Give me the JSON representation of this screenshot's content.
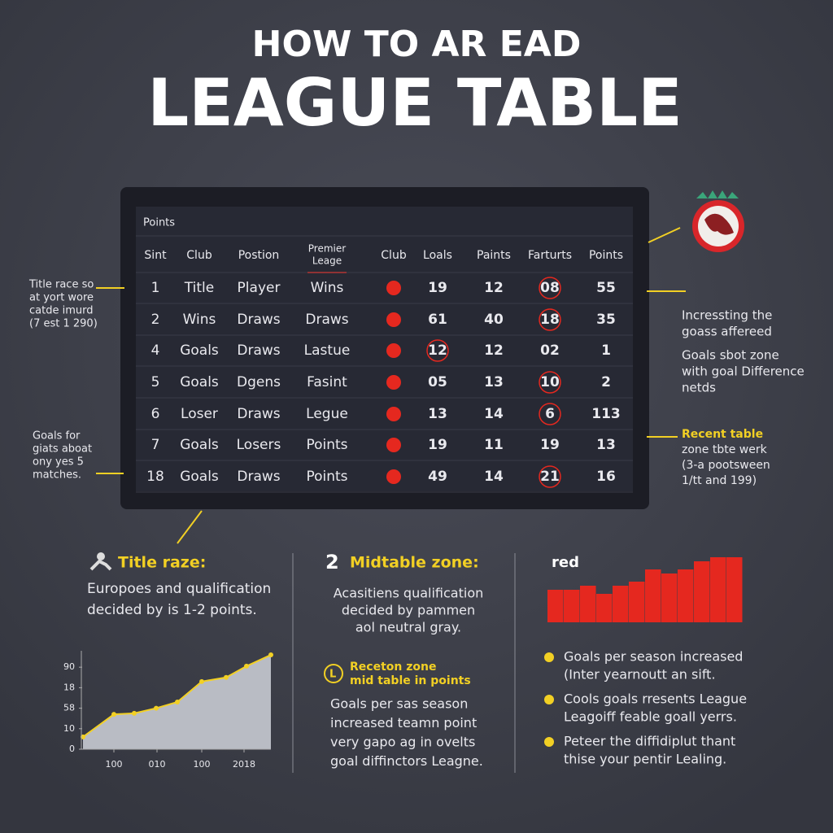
{
  "header": {
    "line1": "HOW TO AR EAD",
    "line2": "LEAGUE TABLE"
  },
  "table": {
    "caption": "Points",
    "columns": [
      "Sint",
      "Club",
      "Postion",
      [
        "Premier",
        "Leage"
      ],
      "Club",
      "Loals",
      "Paints",
      "Farturts",
      "Points"
    ],
    "rows": [
      [
        "1",
        "Title",
        "Player",
        "Wins",
        "19",
        "12",
        {
          "text": "08",
          "circled": true
        },
        "55"
      ],
      [
        "2",
        "Wins",
        "Draws",
        "Draws",
        "61",
        "40",
        {
          "text": "18",
          "circled": true
        },
        "35"
      ],
      [
        "4",
        "Goals",
        "Draws",
        "Lastue",
        {
          "text": "12",
          "circled": true
        },
        "12",
        "02",
        "1"
      ],
      [
        "5",
        "Goals",
        "Dgens",
        "Fasint",
        "05",
        "13",
        {
          "text": "10",
          "circled": true
        },
        "2"
      ],
      [
        "6",
        "Loser",
        "Draws",
        "Legue",
        "13",
        "14",
        {
          "text": "6",
          "circled": true
        },
        "113"
      ],
      [
        "7",
        "Goals",
        "Losers",
        "Points",
        "19",
        "11",
        "19",
        "13"
      ],
      [
        "18",
        "Goals",
        "Draws",
        "Points",
        "49",
        "14",
        {
          "text": "21",
          "circled": true
        },
        "16"
      ]
    ]
  },
  "annotations": {
    "left": [
      [
        "Title race so",
        "at yort wore",
        "catde imurd",
        "(7 est 1 290)"
      ],
      [
        "Goals for",
        "giats aboat",
        "ony yes 5",
        "matches."
      ]
    ],
    "right": [
      [
        "Incressting the",
        "goass affereed"
      ],
      [
        "Goals sbot zone",
        "with goal Difference",
        "netds"
      ]
    ],
    "right_highlight": {
      "title": "Recent table",
      "lines": [
        "zone tbte werk",
        "(3-a pootsween",
        "1/tt and 199)"
      ]
    }
  },
  "sections": {
    "title_race": {
      "title": "Title raze:",
      "lines": [
        "Europoes and qualification",
        "decided by is 1-2 points."
      ]
    },
    "midtable": {
      "title": "Midtable zone:",
      "lines": [
        "Acasitiens qualification",
        "decided by pammen",
        "aol neutral gray."
      ],
      "callout": [
        "Receton zone",
        "mid table in points"
      ],
      "body": [
        "Goals per sas season",
        "increased teamn point",
        "very gapo ag in ovelts",
        "goal diffinctors Leagne."
      ]
    },
    "red_zone": {
      "bullets": [
        [
          "Goals per season increased",
          "(Inter yearnoutt an sift."
        ],
        [
          "Cools goals rresents League",
          "Leagoiff feable goall yerrs."
        ],
        [
          "Peteer the diffidiplut thant",
          "thise your pentir Lealing."
        ]
      ]
    }
  },
  "chart_data": [
    {
      "type": "area",
      "color": "#f2d024",
      "fill": "#b9bcc4",
      "x": [
        0,
        3.8,
        6.3,
        9,
        11.6,
        14.6,
        17.6,
        20.1,
        23.1
      ],
      "values": [
        0.6,
        1.7,
        1.75,
        2,
        2.3,
        3.3,
        3.5,
        4.05,
        4.6
      ],
      "xlim": [
        0,
        23.1
      ],
      "ylim": [
        0,
        4.8
      ],
      "xticks": [
        {
          "value": 3.8,
          "label": "100"
        },
        {
          "value": 9.1,
          "label": "010"
        },
        {
          "value": 14.6,
          "label": "100"
        },
        {
          "value": 19.8,
          "label": "2018"
        }
      ],
      "yticks": [
        {
          "value": 0,
          "label": "0"
        },
        {
          "value": 1,
          "label": "10"
        },
        {
          "value": 2,
          "label": "58"
        },
        {
          "value": 3,
          "label": "18"
        },
        {
          "value": 4,
          "label": "90"
        }
      ]
    },
    {
      "type": "bar",
      "title": "red",
      "color": "#e5281f",
      "values": [
        40,
        40,
        45,
        35,
        45,
        50,
        65,
        60,
        65,
        75,
        80,
        80
      ],
      "ylim": [
        0,
        90
      ]
    }
  ]
}
